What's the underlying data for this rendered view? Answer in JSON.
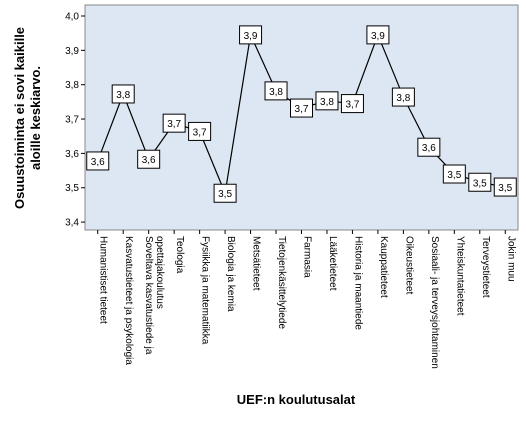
{
  "chart_data": {
    "type": "line",
    "y_label": [
      "Osuustoiminta ei sovi kaikille",
      "aloille keskiarvo."
    ],
    "x_label": "UEF:n koulutusalat",
    "categories": [
      "Humanistiset tieteet",
      "Kasvatustieteet ja psykologia",
      [
        "Soveltava kasvatustiede ja",
        "opettajakoulutus"
      ],
      "Teologia",
      "Fysiikka ja matematiikka",
      "Biologia ja kemia",
      "Metsätieteet",
      "Tietojenkäsittelytiede",
      "Farmasia",
      "Lääketieteet",
      "Historia ja maantiede",
      "Kauppatieteet",
      "Oikeustieteet",
      "Sosiaali- ja terveysjohtaminen",
      "Yhteiskuntatieteet",
      "Terveystieteet",
      "Jokin muu"
    ],
    "values": [
      3.578,
      3.773,
      3.583,
      3.688,
      3.664,
      3.484,
      3.945,
      3.782,
      3.732,
      3.753,
      3.745,
      3.945,
      3.764,
      3.618,
      3.54,
      3.516,
      3.502
    ],
    "value_labels": [
      "3,6",
      "3,8",
      "3,6",
      "3,7",
      "3,7",
      "3,5",
      "3,9",
      "3,8",
      "3,7",
      "3,8",
      "3,7",
      "3,9",
      "3,8",
      "3,6",
      "3,5",
      "3,5",
      "3,5"
    ],
    "color": "#000000",
    "background": "#dde7f3",
    "ylim": [
      3.377,
      4.032
    ],
    "yticks": [
      {
        "value": 3.4,
        "label": "3,4"
      },
      {
        "value": 3.5,
        "label": "3,5"
      },
      {
        "value": 3.6,
        "label": "3,6"
      },
      {
        "value": 3.7,
        "label": "3,7"
      },
      {
        "value": 3.8,
        "label": "3,8"
      },
      {
        "value": 3.9,
        "label": "3,9"
      },
      {
        "value": 4.0,
        "label": "4,0"
      }
    ]
  }
}
